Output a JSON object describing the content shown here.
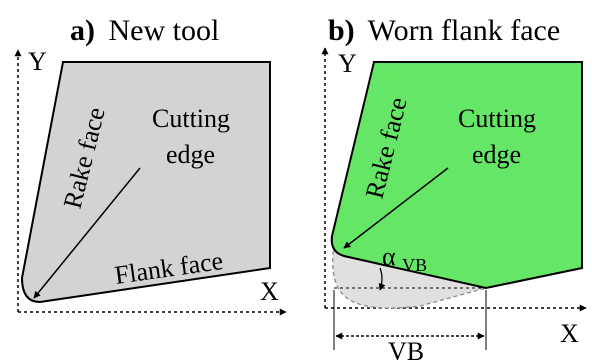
{
  "panels": [
    {
      "letter": "a)",
      "title": "New tool",
      "axis_x": "X",
      "axis_y": "Y",
      "labels": {
        "rake_face": "Rake face",
        "cutting_edge_line1": "Cutting",
        "cutting_edge_line2": "edge",
        "flank_face": "Flank face"
      },
      "colors": {
        "tool_fill": "#d3d3d3",
        "outline": "#000000"
      }
    },
    {
      "letter": "b)",
      "title": "Worn flank face",
      "axis_x": "X",
      "axis_y": "Y",
      "labels": {
        "rake_face": "Rake face",
        "cutting_edge_line1": "Cutting",
        "cutting_edge_line2": "edge",
        "angle_symbol": "α",
        "angle_subscript": "VB",
        "wear_width": "VB"
      },
      "colors": {
        "tool_fill": "#66e666",
        "worn_fill": "#e0e0e0",
        "outline": "#000000"
      }
    }
  ]
}
